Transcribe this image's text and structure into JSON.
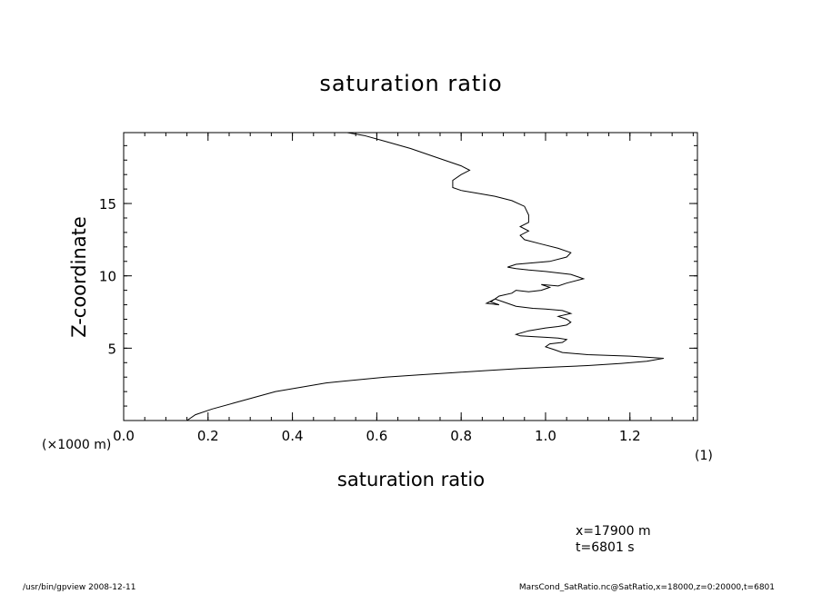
{
  "chart_data": {
    "type": "line",
    "title": "saturation ratio",
    "xlabel": "saturation ratio",
    "ylabel": "Z-coordinate",
    "x_unit": "(1)",
    "y_unit": "(×1000 m)",
    "xlim": [
      0.0,
      1.36
    ],
    "ylim": [
      0.0,
      19.9
    ],
    "x_ticks": [
      {
        "value": 0.0,
        "label": "0.0"
      },
      {
        "value": 0.2,
        "label": "0.2"
      },
      {
        "value": 0.4,
        "label": "0.4"
      },
      {
        "value": 0.6,
        "label": "0.6"
      },
      {
        "value": 0.8,
        "label": "0.8"
      },
      {
        "value": 1.0,
        "label": "1.0"
      },
      {
        "value": 1.2,
        "label": "1.2"
      }
    ],
    "y_ticks": [
      {
        "value": 5,
        "label": "5"
      },
      {
        "value": 10,
        "label": "10"
      },
      {
        "value": 15,
        "label": "15"
      }
    ],
    "x_minor_step": 0.05,
    "y_minor_step": 1,
    "grid": false,
    "series": [
      {
        "x": [
          0.15,
          0.17,
          0.21,
          0.26,
          0.31,
          0.36,
          0.42,
          0.48,
          0.55,
          0.62,
          0.7,
          0.78,
          0.86,
          0.94,
          1.02,
          1.1,
          1.18,
          1.24,
          1.28,
          1.2,
          1.1,
          1.04,
          1.02,
          1.0,
          1.01,
          1.04,
          1.05,
          1.03,
          1.0,
          0.97,
          0.94,
          0.93,
          0.96,
          1.0,
          1.03,
          1.05,
          1.06,
          1.05,
          1.03,
          1.06,
          1.04,
          1.0,
          0.97,
          0.93,
          0.9,
          0.88,
          0.87,
          0.89,
          0.86,
          0.88,
          0.89,
          0.92,
          0.93,
          0.96,
          0.99,
          1.01,
          0.99,
          1.03,
          1.05,
          1.09,
          1.06,
          1.0,
          0.96,
          0.93,
          0.91,
          0.93,
          0.97,
          1.01,
          1.05,
          1.06,
          1.03,
          0.99,
          0.95,
          0.94,
          0.96,
          0.94,
          0.96,
          0.96,
          0.95,
          0.92,
          0.88,
          0.84,
          0.8,
          0.78,
          0.78,
          0.8,
          0.82,
          0.8,
          0.77,
          0.73,
          0.68,
          0.62,
          0.57,
          0.53
        ],
        "y": [
          0.0,
          0.4,
          0.8,
          1.2,
          1.6,
          2.0,
          2.3,
          2.6,
          2.8,
          3.0,
          3.15,
          3.3,
          3.45,
          3.6,
          3.7,
          3.8,
          3.95,
          4.1,
          4.3,
          4.45,
          4.55,
          4.7,
          4.9,
          5.1,
          5.3,
          5.4,
          5.6,
          5.7,
          5.75,
          5.8,
          5.85,
          5.95,
          6.2,
          6.4,
          6.5,
          6.6,
          6.8,
          7.0,
          7.2,
          7.4,
          7.6,
          7.7,
          7.75,
          7.9,
          8.2,
          8.4,
          8.2,
          8.0,
          8.1,
          8.4,
          8.6,
          8.8,
          9.0,
          8.9,
          9.0,
          9.2,
          9.4,
          9.3,
          9.5,
          9.8,
          10.1,
          10.3,
          10.4,
          10.5,
          10.6,
          10.8,
          10.9,
          11.0,
          11.3,
          11.6,
          11.9,
          12.2,
          12.5,
          12.8,
          13.1,
          13.4,
          13.7,
          14.2,
          14.8,
          15.2,
          15.5,
          15.7,
          15.9,
          16.1,
          16.6,
          17.0,
          17.3,
          17.6,
          17.9,
          18.3,
          18.8,
          19.3,
          19.7,
          19.9
        ]
      }
    ]
  },
  "annotations": {
    "x_position": "x=17900 m",
    "time": "t=6801 s"
  },
  "footer": {
    "left": "/usr/bin/gpview   2008-12-11",
    "right": "MarsCond_SatRatio.nc@SatRatio,x=18000,z=0:20000,t=6801"
  }
}
